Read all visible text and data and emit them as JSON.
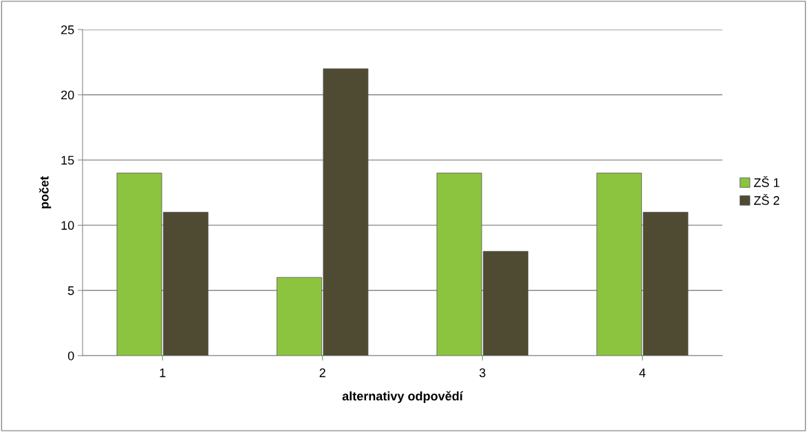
{
  "chart_data": {
    "type": "bar",
    "xlabel": "alternativy odpovědí",
    "ylabel": "počet",
    "categories": [
      "1",
      "2",
      "3",
      "4"
    ],
    "series": [
      {
        "name": "ZŠ 1",
        "color": "#8cc43f",
        "values": [
          14,
          6,
          14,
          14
        ]
      },
      {
        "name": "ZŠ 2",
        "color": "#4f4b33",
        "values": [
          11,
          22,
          8,
          11
        ]
      }
    ],
    "ylim": [
      0,
      25
    ],
    "yticks": [
      0,
      5,
      10,
      15,
      20,
      25
    ],
    "grid": "y",
    "legend": "right"
  }
}
